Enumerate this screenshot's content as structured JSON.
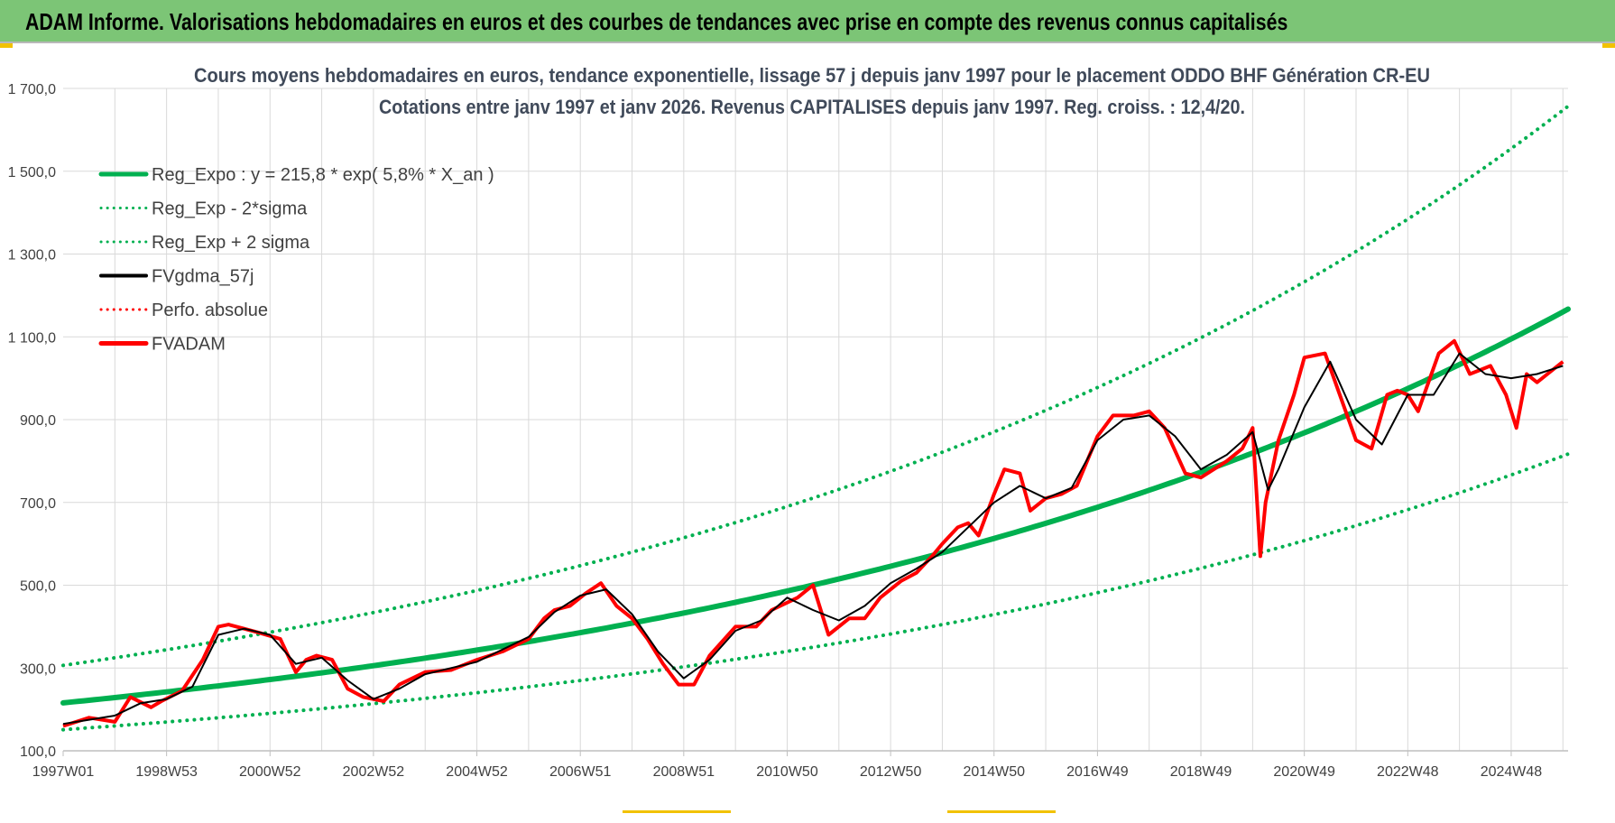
{
  "banner": {
    "title": "ADAM Informe. Valorisations hebdomadaires en euros et des courbes de tendances avec prise en compte des revenus connus capitalisés",
    "color": "#7cc576"
  },
  "chart_data": {
    "type": "line",
    "title": "Cours moyens hebdomadaires en euros, tendance exponentielle, lissage 57 j depuis janv 1997  pour le placement ODDO BHF Génération CR-EU",
    "subtitle": "Cotations entre janv 1997 et janv 2026. Revenus CAPITALISES depuis janv 1997. Reg. croiss. : 12,4/20.",
    "xlabel": "",
    "ylabel": "",
    "ylim": [
      100,
      1700
    ],
    "xlim": [
      1997.0,
      2026.1
    ],
    "y_ticks": [
      {
        "value": 100,
        "label": "100,0"
      },
      {
        "value": 300,
        "label": "300,0"
      },
      {
        "value": 500,
        "label": "500,0"
      },
      {
        "value": 700,
        "label": "700,0"
      },
      {
        "value": 900,
        "label": "900,0"
      },
      {
        "value": 1100,
        "label": "1 100,0"
      },
      {
        "value": 1300,
        "label": "1 300,0"
      },
      {
        "value": 1500,
        "label": "1 500,0"
      },
      {
        "value": 1700,
        "label": "1 700,0"
      }
    ],
    "x_ticks": [
      {
        "value": 1997.0,
        "label": "1997W01"
      },
      {
        "value": 1999.0,
        "label": "1998W53"
      },
      {
        "value": 2001.0,
        "label": "2000W52"
      },
      {
        "value": 2003.0,
        "label": "2002W52"
      },
      {
        "value": 2005.0,
        "label": "2004W52"
      },
      {
        "value": 2007.0,
        "label": "2006W51"
      },
      {
        "value": 2009.0,
        "label": "2008W51"
      },
      {
        "value": 2011.0,
        "label": "2010W50"
      },
      {
        "value": 2013.0,
        "label": "2012W50"
      },
      {
        "value": 2015.0,
        "label": "2014W50"
      },
      {
        "value": 2017.0,
        "label": "2016W49"
      },
      {
        "value": 2019.0,
        "label": "2018W49"
      },
      {
        "value": 2021.0,
        "label": "2020W49"
      },
      {
        "value": 2023.0,
        "label": "2022W48"
      },
      {
        "value": 2025.0,
        "label": "2024W48"
      }
    ],
    "grid": true,
    "legend_position": "top-left",
    "regression": {
      "base": 215.8,
      "rate": 0.058,
      "start_year": 1997.0,
      "upper_factor": 1.42,
      "lower_factor": 0.7
    },
    "series": [
      {
        "name": "Reg_Expo : y = 215,8 * exp( 5,8% *  X_an )",
        "color": "#00b050",
        "style": "solid-thick",
        "kind": "regression"
      },
      {
        "name": "Reg_Exp - 2*sigma",
        "color": "#00b050",
        "style": "dotted",
        "kind": "lower"
      },
      {
        "name": "Reg_Exp + 2 sigma",
        "color": "#00b050",
        "style": "dotted",
        "kind": "upper"
      },
      {
        "name": "FVgdma_57j",
        "color": "#000000",
        "style": "solid",
        "kind": "data"
      },
      {
        "name": "Perfo. absolue",
        "color": "#ff0000",
        "style": "dotted",
        "kind": "none"
      },
      {
        "name": "FVADAM",
        "color": "#ff0000",
        "style": "solid-thick",
        "kind": "data"
      }
    ],
    "fvadam": {
      "x": [
        1997.0,
        1997.5,
        1998.0,
        1998.3,
        1998.7,
        1998.9,
        1999.3,
        1999.7,
        2000.0,
        2000.2,
        2000.5,
        2000.8,
        2001.2,
        2001.5,
        2001.7,
        2001.9,
        2002.2,
        2002.5,
        2002.8,
        2003.2,
        2003.5,
        2004.0,
        2004.5,
        2005.0,
        2005.5,
        2006.0,
        2006.3,
        2006.5,
        2006.8,
        2007.1,
        2007.4,
        2007.7,
        2008.0,
        2008.3,
        2008.6,
        2008.9,
        2009.2,
        2009.5,
        2010.0,
        2010.4,
        2010.7,
        2011.2,
        2011.5,
        2011.8,
        2012.2,
        2012.5,
        2012.8,
        2013.2,
        2013.5,
        2013.8,
        2014.0,
        2014.3,
        2014.5,
        2014.7,
        2015.0,
        2015.2,
        2015.5,
        2015.7,
        2016.0,
        2016.3,
        2016.6,
        2017.0,
        2017.3,
        2017.7,
        2018.0,
        2018.3,
        2018.7,
        2019.0,
        2019.5,
        2019.8,
        2020.0,
        2020.15,
        2020.25,
        2020.5,
        2020.8,
        2021.0,
        2021.4,
        2021.8,
        2022.0,
        2022.3,
        2022.6,
        2022.8,
        2023.0,
        2023.2,
        2023.6,
        2023.9,
        2024.2,
        2024.4,
        2024.6,
        2024.9,
        2025.1,
        2025.3,
        2025.5,
        2025.7,
        2026.0
      ],
      "y": [
        160,
        180,
        170,
        230,
        205,
        220,
        245,
        320,
        400,
        405,
        395,
        385,
        370,
        290,
        320,
        330,
        320,
        250,
        230,
        220,
        260,
        290,
        295,
        320,
        340,
        370,
        420,
        440,
        450,
        480,
        505,
        450,
        420,
        370,
        310,
        260,
        260,
        330,
        400,
        400,
        440,
        470,
        500,
        380,
        420,
        420,
        470,
        510,
        530,
        570,
        600,
        640,
        650,
        620,
        720,
        780,
        770,
        680,
        710,
        720,
        740,
        860,
        910,
        910,
        920,
        880,
        770,
        760,
        800,
        830,
        880,
        570,
        700,
        850,
        960,
        1050,
        1060,
        920,
        850,
        830,
        960,
        970,
        960,
        920,
        1060,
        1090,
        1010,
        1020,
        1030,
        960,
        880,
        1010,
        990,
        1010,
        1040
      ]
    },
    "fvgdma": {
      "x": [
        1997.0,
        1997.5,
        1998.0,
        1998.5,
        1999.0,
        1999.5,
        2000.0,
        2000.5,
        2001.0,
        2001.5,
        2002.0,
        2002.5,
        2003.0,
        2003.5,
        2004.0,
        2004.5,
        2005.0,
        2005.5,
        2006.0,
        2006.5,
        2007.0,
        2007.5,
        2008.0,
        2008.5,
        2009.0,
        2009.5,
        2010.0,
        2010.5,
        2011.0,
        2011.5,
        2012.0,
        2012.5,
        2013.0,
        2013.5,
        2014.0,
        2014.5,
        2015.0,
        2015.5,
        2016.0,
        2016.5,
        2017.0,
        2017.5,
        2018.0,
        2018.5,
        2019.0,
        2019.5,
        2020.0,
        2020.3,
        2020.5,
        2021.0,
        2021.5,
        2022.0,
        2022.5,
        2023.0,
        2023.5,
        2024.0,
        2024.5,
        2025.0,
        2025.5,
        2026.0
      ],
      "y": [
        165,
        175,
        185,
        215,
        225,
        255,
        380,
        395,
        380,
        310,
        325,
        270,
        225,
        250,
        285,
        300,
        315,
        345,
        375,
        435,
        475,
        490,
        430,
        340,
        275,
        320,
        390,
        415,
        470,
        440,
        415,
        450,
        505,
        540,
        580,
        640,
        700,
        740,
        710,
        735,
        850,
        900,
        910,
        860,
        780,
        815,
        870,
        730,
        780,
        930,
        1040,
        900,
        840,
        960,
        960,
        1060,
        1010,
        1000,
        1010,
        1030
      ]
    }
  }
}
